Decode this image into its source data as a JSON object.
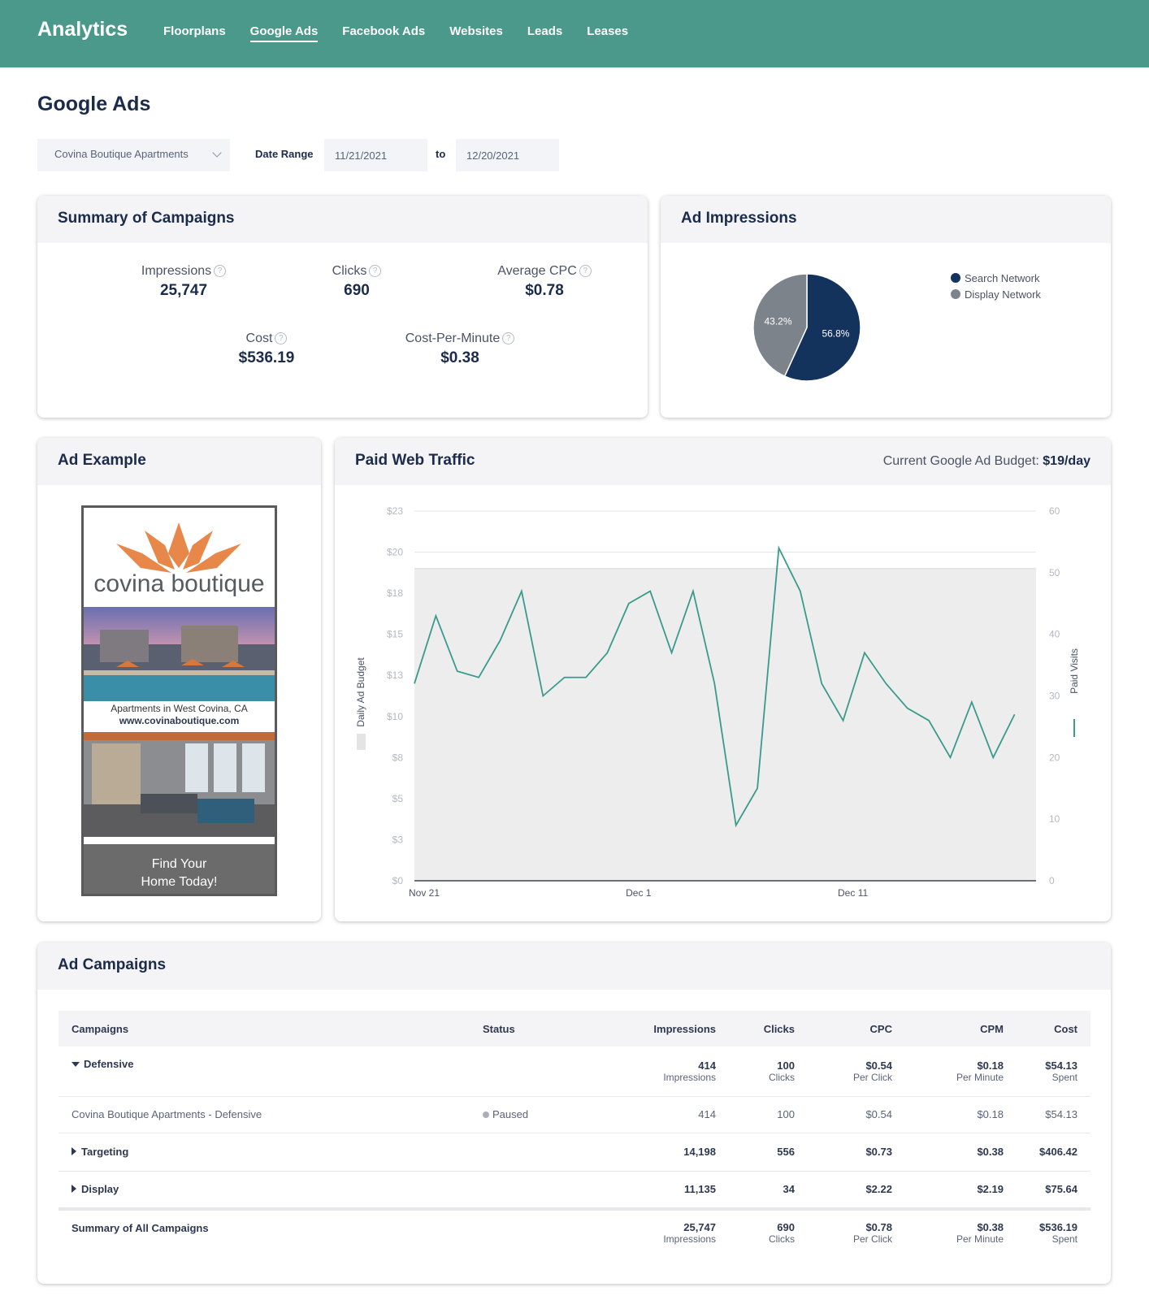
{
  "app": {
    "title": "Analytics"
  },
  "nav": {
    "items": [
      {
        "label": "Floorplans",
        "active": false
      },
      {
        "label": "Google Ads",
        "active": true
      },
      {
        "label": "Facebook Ads",
        "active": false
      },
      {
        "label": "Websites",
        "active": false
      },
      {
        "label": "Leads",
        "active": false
      },
      {
        "label": "Leases",
        "active": false
      }
    ]
  },
  "page": {
    "title": "Google Ads"
  },
  "filters": {
    "property": "Covina Boutique Apartments",
    "date_range_label": "Date Range",
    "start_date": "11/21/2021",
    "to_label": "to",
    "end_date": "12/20/2021"
  },
  "summary": {
    "title": "Summary of Campaigns",
    "help_glyph": "?",
    "stats": [
      {
        "label": "Impressions",
        "value": "25,747"
      },
      {
        "label": "Clicks",
        "value": "690"
      },
      {
        "label": "Average CPC",
        "value": "$0.78"
      },
      {
        "label": "Cost",
        "value": "$536.19"
      },
      {
        "label": "Cost-Per-Minute",
        "value": "$0.38"
      }
    ]
  },
  "impressions": {
    "title": "Ad Impressions",
    "legend": [
      "Search Network",
      "Display Network"
    ],
    "colors": {
      "search": "#13325c",
      "display": "#7d838b"
    }
  },
  "ad_example": {
    "title": "Ad Example",
    "brand": "covina boutique",
    "tagline": "Apartments in West Covina, CA",
    "url": "www.covinaboutique.com",
    "cta_line1": "Find Your",
    "cta_line2": "Home Today!"
  },
  "traffic": {
    "title": "Paid Web Traffic",
    "budget_label": "Current Google Ad Budget:",
    "budget_value": "$19/day",
    "line_color": "#3a9a8c"
  },
  "chart_data": [
    {
      "type": "pie",
      "labels": [
        "Search Network",
        "Display Network"
      ],
      "values": [
        56.8,
        43.2
      ],
      "value_labels": [
        "56.8%",
        "43.2%"
      ]
    },
    {
      "type": "area",
      "title": "",
      "xlabel": "",
      "ylabel": "Daily Ad Budget",
      "y2label": "Paid Visits",
      "x_ticks": [
        "Nov 21",
        "Dec 1",
        "Dec 11"
      ],
      "y_ticks": [
        "$0",
        "$3",
        "$5",
        "$8",
        "$10",
        "$13",
        "$15",
        "$18",
        "$20",
        "$23"
      ],
      "y2_ticks": [
        "0",
        "10",
        "20",
        "30",
        "40",
        "50",
        "60"
      ],
      "ylim": [
        0,
        22.5
      ],
      "y2lim": [
        0,
        60
      ],
      "series": [
        {
          "name": "Daily Ad Budget",
          "type": "area",
          "x": [
            "Nov 21",
            "Dec 20"
          ],
          "values": [
            19,
            19
          ]
        },
        {
          "name": "Paid Visits",
          "type": "line",
          "axis": "right",
          "x": [
            "Nov 21",
            "Nov 22",
            "Nov 23",
            "Nov 24",
            "Nov 25",
            "Nov 26",
            "Nov 27",
            "Nov 28",
            "Nov 29",
            "Nov 30",
            "Dec 1",
            "Dec 2",
            "Dec 3",
            "Dec 4",
            "Dec 5",
            "Dec 6",
            "Dec 7",
            "Dec 8",
            "Dec 9",
            "Dec 10",
            "Dec 11",
            "Dec 12",
            "Dec 13",
            "Dec 14",
            "Dec 15",
            "Dec 16",
            "Dec 17",
            "Dec 18",
            "Dec 19"
          ],
          "values": [
            32,
            43,
            34,
            33,
            39,
            47,
            30,
            33,
            33,
            37,
            45,
            47,
            37,
            47,
            32,
            9,
            15,
            54,
            47,
            32,
            26,
            37,
            32,
            28,
            26,
            20,
            29,
            20,
            27
          ]
        }
      ]
    }
  ],
  "campaigns": {
    "title": "Ad Campaigns",
    "columns": [
      "Campaigns",
      "Status",
      "Impressions",
      "Clicks",
      "CPC",
      "CPM",
      "Cost"
    ],
    "defensive": {
      "name": "Defensive",
      "impressions": "414",
      "impressions_sub": "Impressions",
      "clicks": "100",
      "clicks_sub": "Clicks",
      "cpc": "$0.54",
      "cpc_sub": "Per Click",
      "cpm": "$0.18",
      "cpm_sub": "Per Minute",
      "cost": "$54.13",
      "cost_sub": "Spent"
    },
    "defensive_child": {
      "name": "Covina Boutique Apartments - Defensive",
      "status": "Paused",
      "impressions": "414",
      "clicks": "100",
      "cpc": "$0.54",
      "cpm": "$0.18",
      "cost": "$54.13"
    },
    "targeting": {
      "name": "Targeting",
      "impressions": "14,198",
      "clicks": "556",
      "cpc": "$0.73",
      "cpm": "$0.38",
      "cost": "$406.42"
    },
    "display": {
      "name": "Display",
      "impressions": "11,135",
      "clicks": "34",
      "cpc": "$2.22",
      "cpm": "$2.19",
      "cost": "$75.64"
    },
    "summary": {
      "name": "Summary of All Campaigns",
      "impressions": "25,747",
      "impressions_sub": "Impressions",
      "clicks": "690",
      "clicks_sub": "Clicks",
      "cpc": "$0.78",
      "cpc_sub": "Per Click",
      "cpm": "$0.38",
      "cpm_sub": "Per Minute",
      "cost": "$536.19",
      "cost_sub": "Spent"
    }
  }
}
